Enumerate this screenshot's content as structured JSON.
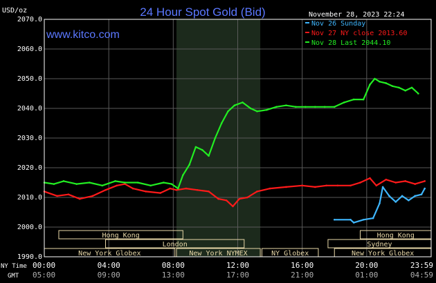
{
  "chart_data": {
    "type": "line",
    "title": "24 Hour Spot Gold (Bid)",
    "watermark": "www.kitco.com",
    "timestamp": "November 28, 2023 22:24",
    "ylabel": "USD/oz",
    "ylim": [
      1990,
      2070
    ],
    "y_ticks": [
      "2070.0",
      "2060.0",
      "2050.0",
      "2040.0",
      "2030.0",
      "2020.0",
      "2010.0",
      "2000.0",
      "1990.0"
    ],
    "grid": true,
    "legend_position": "top-right",
    "x_row_labels": [
      "NY Time",
      "GMT"
    ],
    "x_ticks_ny": [
      "00:00",
      "04:00",
      "08:00",
      "12:00",
      "16:00",
      "20:00",
      "23:59"
    ],
    "x_ticks_gmt": [
      "05:00",
      "09:00",
      "13:00",
      "17:00",
      "21:00",
      "01:00",
      "04:59"
    ],
    "colors": {
      "series_1": "#3fb7ff",
      "series_2": "#ff1a1a",
      "series_3": "#22ee22",
      "title": "#5b78ff",
      "axis_text": "#ffffff",
      "grid": "#5a5a5a",
      "session_shade": "#1c2a1c",
      "session_fill": "#e8d8a8",
      "session_text": "#000000"
    },
    "sessions": [
      {
        "label": "Hong Kong",
        "start": 0.9,
        "end": 8.6,
        "row": 1
      },
      {
        "label": "London",
        "start": 3.8,
        "end": 12.4,
        "row": 2
      },
      {
        "label": "New York Globex",
        "start": 0,
        "end": 8.1,
        "row": 3
      },
      {
        "label": "New York NYMEX",
        "start": 8.2,
        "end": 13.4,
        "row": 3
      },
      {
        "label": "NY Globex",
        "start": 13.5,
        "end": 17.0,
        "row": 3
      },
      {
        "label": "Hong Kong",
        "start": 19.6,
        "end": 24,
        "row": 1
      },
      {
        "label": "Sydney",
        "start": 17.6,
        "end": 24,
        "row": 2
      },
      {
        "label": "New York Globex",
        "start": 18.0,
        "end": 24,
        "row": 3
      }
    ],
    "shaded_range": [
      8.2,
      13.4
    ],
    "series": [
      {
        "name": "Nov 26 Sunday",
        "x": [
          18.0,
          19.0,
          19.2,
          19.8,
          20.4,
          20.8,
          21.0,
          21.4,
          21.8,
          22.2,
          22.6,
          23.0,
          23.4,
          23.6
        ],
        "y": [
          2002.5,
          2002.5,
          2001.5,
          2002.5,
          2003.0,
          2008.0,
          2013.5,
          2010.5,
          2008.5,
          2010.5,
          2009.0,
          2010.5,
          2011.0,
          2013.0
        ]
      },
      {
        "name": "Nov 27 NY close 2013.60",
        "x": [
          0,
          0.8,
          1.5,
          2.2,
          3.0,
          3.8,
          4.5,
          5.0,
          5.5,
          6.3,
          7.2,
          7.8,
          8.2,
          8.8,
          9.5,
          10.2,
          10.8,
          11.3,
          11.7,
          12.1,
          12.6,
          13.2,
          14.0,
          15.0,
          16.0,
          16.8,
          17.5,
          18.2,
          19.0,
          19.6,
          20.2,
          20.6,
          21.2,
          21.8,
          22.4,
          23.0,
          23.6
        ],
        "y": [
          2012.0,
          2010.5,
          2011.0,
          2009.5,
          2010.5,
          2012.5,
          2014.0,
          2014.5,
          2013.0,
          2012.0,
          2011.5,
          2013.0,
          2012.5,
          2013.0,
          2012.5,
          2012.0,
          2009.5,
          2009.0,
          2007.0,
          2009.5,
          2010.0,
          2012.0,
          2013.0,
          2013.5,
          2014.0,
          2013.5,
          2014.0,
          2014.0,
          2014.0,
          2015.0,
          2016.5,
          2014.0,
          2016.0,
          2015.0,
          2015.5,
          2014.5,
          2015.5
        ]
      },
      {
        "name": "Nov 28 Last 2044.10",
        "x": [
          0,
          0.6,
          1.2,
          2.0,
          2.8,
          3.6,
          4.4,
          5.0,
          5.8,
          6.6,
          7.4,
          7.9,
          8.3,
          8.6,
          9.0,
          9.4,
          9.8,
          10.2,
          10.6,
          11.0,
          11.4,
          11.8,
          12.3,
          12.8,
          13.2,
          13.8,
          14.4,
          15.0,
          15.6,
          16.2,
          16.8,
          17.4,
          18.0,
          18.6,
          19.2,
          19.8,
          20.2,
          20.5,
          20.8,
          21.2,
          21.6,
          22.0,
          22.4,
          22.8,
          23.2
        ],
        "y": [
          2015.0,
          2014.5,
          2015.5,
          2014.5,
          2015.0,
          2014.0,
          2015.5,
          2015.0,
          2015.0,
          2014.0,
          2015.0,
          2014.5,
          2013.0,
          2017.5,
          2021.0,
          2027.0,
          2026.0,
          2024.0,
          2030.0,
          2035.0,
          2039.0,
          2041.0,
          2042.0,
          2040.0,
          2039.0,
          2039.5,
          2040.5,
          2041.0,
          2040.5,
          2040.5,
          2040.5,
          2040.5,
          2040.5,
          2042.0,
          2043.0,
          2043.0,
          2048.0,
          2050.0,
          2049.0,
          2048.5,
          2047.5,
          2047.0,
          2046.0,
          2047.0,
          2045.0
        ]
      }
    ]
  }
}
